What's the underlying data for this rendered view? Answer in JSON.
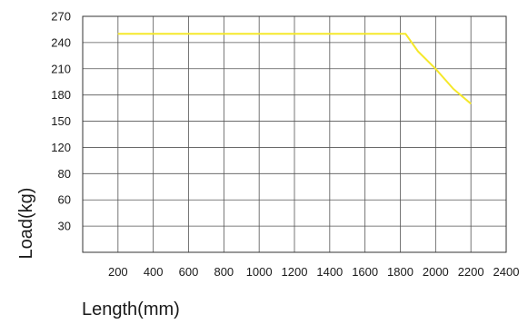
{
  "chart_data": {
    "type": "line",
    "title": "",
    "xlabel": "Length(mm)",
    "ylabel": "Load(kg)",
    "x_ticks": [
      "200",
      "400",
      "600",
      "800",
      "1000",
      "1200",
      "1400",
      "1600",
      "1800",
      "2000",
      "2200",
      "2400"
    ],
    "y_ticks": [
      "30",
      "60",
      "80",
      "120",
      "150",
      "180",
      "210",
      "240",
      "270"
    ],
    "grid": true,
    "series": [
      {
        "color": "#f5e82a",
        "x": [
          200,
          1830,
          1900,
          2000,
          2100,
          2200
        ],
        "y": [
          250,
          250,
          230,
          210,
          187,
          170
        ]
      }
    ]
  }
}
